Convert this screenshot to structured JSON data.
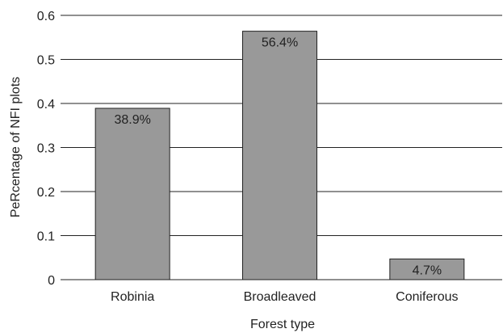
{
  "chart_data": {
    "type": "bar",
    "categories": [
      "Robinia",
      "Broadleaved",
      "Coniferous"
    ],
    "values": [
      0.389,
      0.564,
      0.047
    ],
    "data_labels": [
      "38.9%",
      "56.4%",
      "4.7%"
    ],
    "xlabel": "Forest type",
    "ylabel": "PeRcentage of NFI plots",
    "ylim": [
      0,
      0.6
    ],
    "yticks": [
      0,
      0.1,
      0.2,
      0.3,
      0.4,
      0.5,
      0.6
    ],
    "ytick_labels": [
      "0",
      "0.1",
      "0.2",
      "0.3",
      "0.4",
      "0.5",
      "0.6"
    ],
    "grid": true,
    "bar_color": "#999999",
    "bar_edge_color": "#222222",
    "grid_color": "#222222"
  }
}
